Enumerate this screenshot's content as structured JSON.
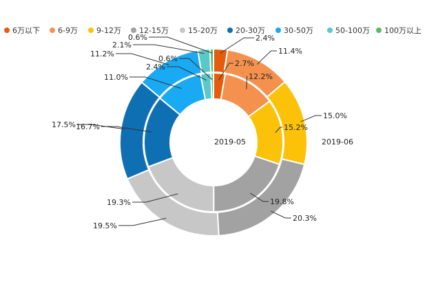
{
  "chart_data": {
    "type": "pie",
    "subtype": "nested-donut",
    "legend_position": "top",
    "categories": [
      "6万以下",
      "6-9万",
      "9-12万",
      "12-15万",
      "15-20万",
      "20-30万",
      "30-50万",
      "50-100万",
      "100万以上"
    ],
    "colors": [
      "#e35d0d",
      "#f4914e",
      "#fcc20a",
      "#a2a2a2",
      "#c7c7c7",
      "#0f6fb3",
      "#1aa9f3",
      "#5ac8c8",
      "#5ab86c"
    ],
    "series": [
      {
        "name": "2019-05",
        "ring": "inner",
        "values": [
          2.7,
          12.2,
          15.2,
          19.8,
          19.3,
          16.7,
          11.0,
          2.4,
          0.6
        ],
        "labels": [
          "2.7%",
          "12.2%",
          "15.2%",
          "19.8%",
          "19.3%",
          "16.7%",
          "11.0%",
          "2.4%",
          "0.6%"
        ]
      },
      {
        "name": "2019-06",
        "ring": "outer",
        "values": [
          2.4,
          11.4,
          15.0,
          20.3,
          19.5,
          17.5,
          11.2,
          2.1,
          0.6
        ],
        "labels": [
          "2.4%",
          "11.4%",
          "15.0%",
          "20.3%",
          "19.5%",
          "17.5%",
          "11.2%",
          "2.1%",
          "0.6%"
        ]
      }
    ]
  }
}
